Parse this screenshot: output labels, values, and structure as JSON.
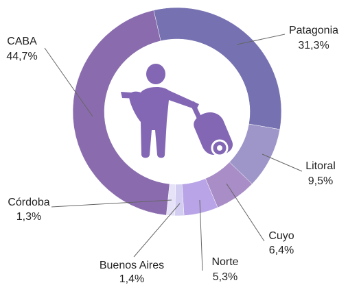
{
  "chart_data": {
    "type": "donut",
    "categories": [
      "Patagonia",
      "Litoral",
      "Cuyo",
      "Norte",
      "Buenos Aires",
      "Córdoba",
      "CABA"
    ],
    "values": [
      31.3,
      9.5,
      6.4,
      5.3,
      1.4,
      1.3,
      44.7
    ],
    "value_labels": [
      "31,3%",
      "9,5%",
      "6,4%",
      "5,3%",
      "1,4%",
      "1,3%",
      "44,7%"
    ],
    "colors": [
      "#7672b2",
      "#9e96c9",
      "#a88dc6",
      "#b8a4e6",
      "#d3cdf1",
      "#e6e2f8",
      "#8a6cae"
    ]
  }
}
